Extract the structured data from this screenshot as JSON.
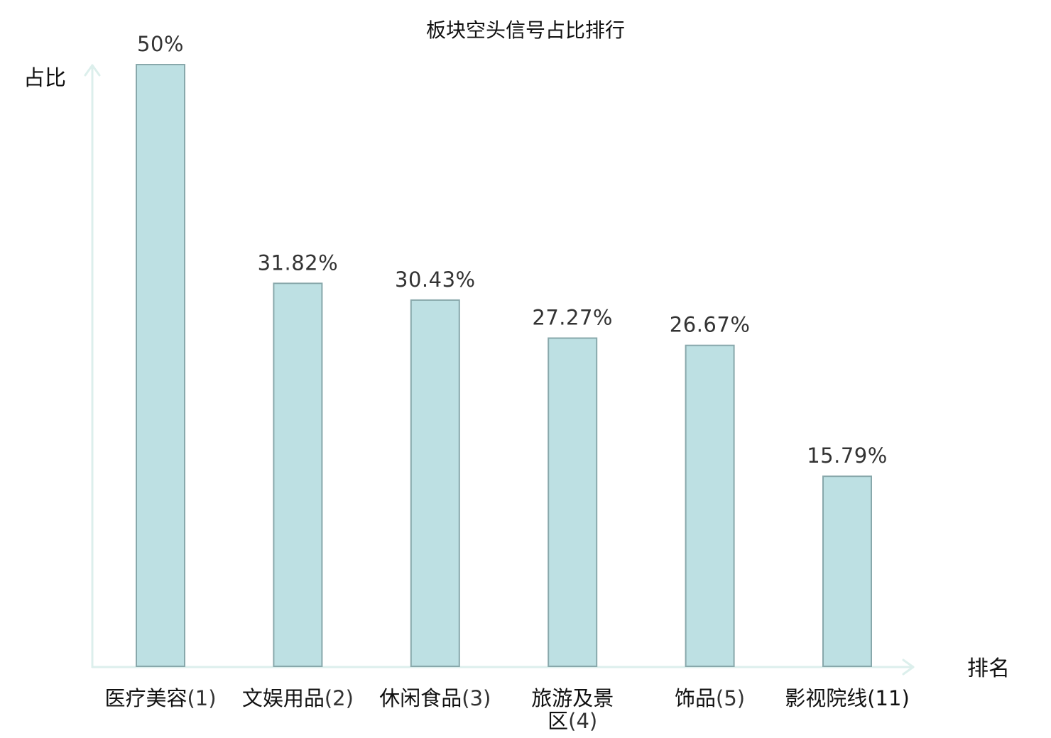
{
  "chart_data": {
    "type": "bar",
    "title": "板块空头信号占比排行",
    "ylabel": "占比",
    "xlabel": "排名",
    "categories": [
      {
        "name": "医疗美容",
        "rank": "(1)",
        "highlight": false
      },
      {
        "name": "文娱用品",
        "rank": "(2)",
        "highlight": false
      },
      {
        "name": "休闲食品",
        "rank": "(3)",
        "highlight": false
      },
      {
        "name": "旅游及景区",
        "rank": "(4)",
        "highlight": false
      },
      {
        "name": "饰品",
        "rank": "(5)",
        "highlight": false
      },
      {
        "name": "影视院线",
        "rank": "(11)",
        "highlight": true
      }
    ],
    "values": [
      50,
      31.82,
      30.43,
      27.27,
      26.67,
      15.79
    ],
    "value_labels": [
      "50%",
      "31.82%",
      "30.43%",
      "27.27%",
      "26.67%",
      "15.79%"
    ],
    "ylim": [
      0,
      50
    ],
    "grid": false,
    "legend": "none",
    "colors": {
      "bar_fill": "#bde0e3",
      "bar_stroke": "#88a8ab",
      "axis": "#dcefec",
      "highlight_text": "#e3191c",
      "text": "#111111"
    }
  }
}
